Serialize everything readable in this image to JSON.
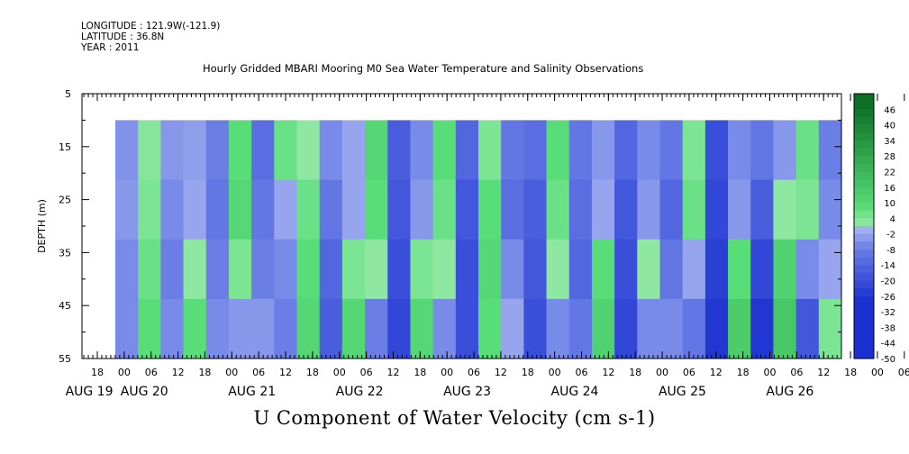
{
  "header": {
    "longitude": "LONGITUDE : 121.9W(-121.9)",
    "latitude": "LATITUDE : 36.8N",
    "year": "YEAR : 2011"
  },
  "chart_data": {
    "type": "heatmap",
    "title": "Hourly Gridded MBARI Mooring M0 Sea Water Temperature and Salinity Observations",
    "xlabel": "U Component of Water Velocity (cm s-1)",
    "ylabel": "DEPTH (m)",
    "y_ticks": [
      5,
      15,
      25,
      35,
      45,
      55
    ],
    "ylim": [
      5,
      55
    ],
    "y_inverted": true,
    "data_depth_range": [
      10,
      55
    ],
    "x_hour_ticks": [
      "18",
      "00",
      "06",
      "12",
      "18",
      "00",
      "06",
      "12",
      "18",
      "00",
      "06",
      "12",
      "18",
      "00",
      "06",
      "12",
      "18",
      "00",
      "06",
      "12",
      "18",
      "00",
      "06",
      "12",
      "18",
      "00",
      "06",
      "12",
      "18",
      "00",
      "06",
      "12"
    ],
    "x_day_labels": [
      "AUG 19",
      "AUG 20",
      "AUG 21",
      "AUG 22",
      "AUG 23",
      "AUG 24",
      "AUG 25",
      "AUG 26"
    ],
    "colorbar_labels": [
      "46",
      "40",
      "34",
      "28",
      "22",
      "16",
      "10",
      "4",
      "-2",
      "-8",
      "-14",
      "-20",
      "-26",
      "-32",
      "-38",
      "-44",
      "-50"
    ],
    "colorbar_range": [
      -50,
      52
    ],
    "colorbar_step": 3,
    "colors": {
      "negative_deep": "#1a2fd0",
      "negative_mid": "#6a7ee6",
      "negative_light": "#a4b2f0",
      "positive_light": "#a0ecb0",
      "positive_mid": "#58dd78",
      "positive_deep": "#0a6e24"
    },
    "columns": [
      [
        -5,
        -4,
        -6,
        -6
      ],
      [
        3,
        4,
        6,
        8
      ],
      [
        -4,
        -6,
        -8,
        -6
      ],
      [
        -3,
        -2,
        2,
        8
      ],
      [
        -8,
        -10,
        -8,
        -6
      ],
      [
        8,
        10,
        4,
        -4
      ],
      [
        -12,
        -10,
        -8,
        -4
      ],
      [
        6,
        -2,
        -6,
        -8
      ],
      [
        2,
        6,
        8,
        10
      ],
      [
        -6,
        -10,
        -14,
        -16
      ],
      [
        -2,
        -2,
        4,
        10
      ],
      [
        10,
        8,
        2,
        -8
      ],
      [
        -16,
        -18,
        -20,
        -22
      ],
      [
        -6,
        -4,
        4,
        10
      ],
      [
        8,
        6,
        2,
        -6
      ],
      [
        -14,
        -18,
        -20,
        -20
      ],
      [
        4,
        8,
        10,
        8
      ],
      [
        -10,
        -12,
        -6,
        -2
      ],
      [
        -12,
        -16,
        -18,
        -20
      ],
      [
        8,
        6,
        2,
        -6
      ],
      [
        -10,
        -12,
        -14,
        -10
      ],
      [
        -4,
        -2,
        8,
        12
      ],
      [
        -14,
        -18,
        -20,
        -22
      ],
      [
        -6,
        -4,
        2,
        -6
      ],
      [
        -10,
        -14,
        -10,
        -6
      ],
      [
        4,
        6,
        -2,
        -10
      ],
      [
        -20,
        -22,
        -24,
        -26
      ],
      [
        -6,
        -4,
        8,
        14
      ],
      [
        -10,
        -16,
        -22,
        -26
      ],
      [
        -4,
        2,
        12,
        16
      ],
      [
        6,
        4,
        -6,
        -18
      ],
      [
        -8,
        -6,
        -2,
        4
      ]
    ]
  }
}
